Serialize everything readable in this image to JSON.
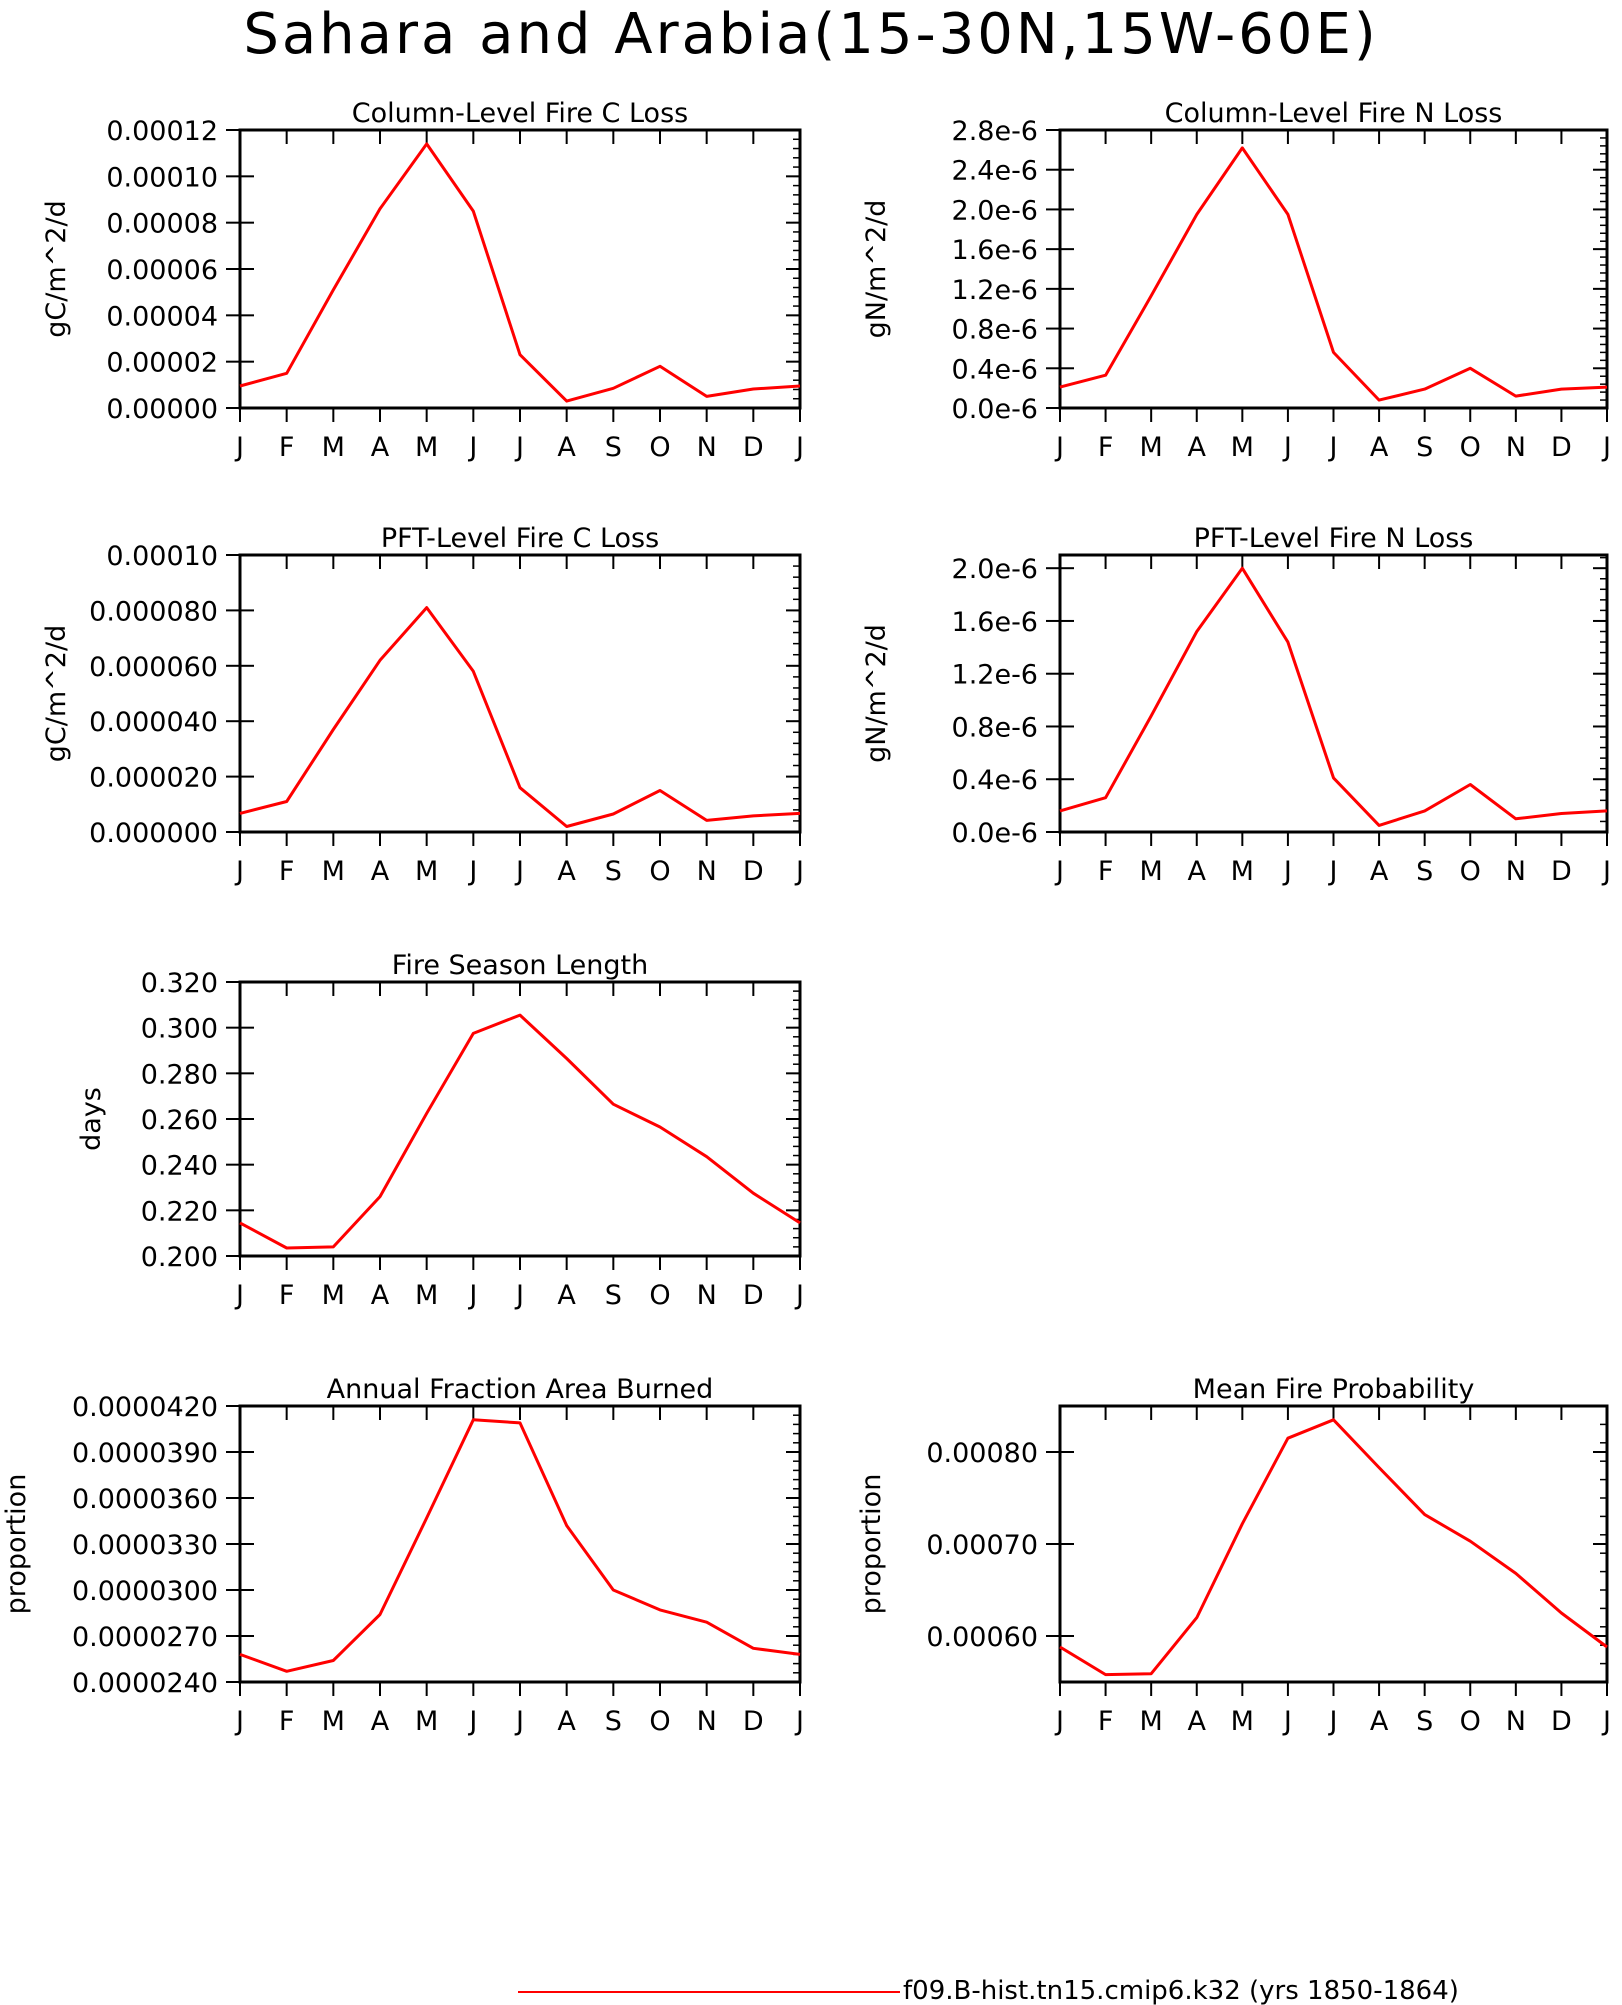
{
  "figure_title": "Sahara and Arabia(15-30N,15W-60E)",
  "legend": {
    "label": "f09.B-hist.tn15.cmip6.k32 (yrs 1850-1864)",
    "color": "#ff0000"
  },
  "colors": {
    "line": "#ff0000",
    "axis": "#000000",
    "background": "#ffffff"
  },
  "chart_data": [
    {
      "type": "line",
      "title": "Column-Level Fire C Loss",
      "ylabel": "gC/m^2/d",
      "xlabel": "",
      "categories": [
        "J",
        "F",
        "M",
        "A",
        "M",
        "J",
        "J",
        "A",
        "S",
        "O",
        "N",
        "D",
        "J"
      ],
      "ylim": [
        0,
        0.00012
      ],
      "yticks": [
        0,
        2e-05,
        4e-05,
        6e-05,
        8e-05,
        0.0001,
        0.00012
      ],
      "ytick_labels": [
        "0.00000",
        "0.00002",
        "0.00004",
        "0.00006",
        "0.00008",
        "0.00010",
        "0.00012"
      ],
      "series": [
        {
          "values": [
            9.5e-06,
            1.5e-05,
            5.1e-05,
            8.6e-05,
            0.000114,
            8.5e-05,
            2.3e-05,
            3e-06,
            8.5e-06,
            1.8e-05,
            5e-06,
            8.2e-06,
            9.5e-06
          ]
        }
      ],
      "grid": false
    },
    {
      "type": "line",
      "title": "Column-Level Fire N Loss",
      "ylabel": "gN/m^2/d",
      "xlabel": "",
      "categories": [
        "J",
        "F",
        "M",
        "A",
        "M",
        "J",
        "J",
        "A",
        "S",
        "O",
        "N",
        "D",
        "J"
      ],
      "ylim": [
        0,
        2.8e-06
      ],
      "yticks": [
        0,
        4e-07,
        8e-07,
        1.2e-06,
        1.6e-06,
        2e-06,
        2.4e-06,
        2.8e-06
      ],
      "ytick_labels": [
        "0.0e-6",
        "0.4e-6",
        "0.8e-6",
        "1.2e-6",
        "1.6e-6",
        "2.0e-6",
        "2.4e-6",
        "2.8e-6"
      ],
      "series": [
        {
          "values": [
            2.1e-07,
            3.3e-07,
            1.13e-06,
            1.95e-06,
            2.62e-06,
            1.95e-06,
            5.6e-07,
            8e-08,
            1.9e-07,
            4e-07,
            1.2e-07,
            1.9e-07,
            2.1e-07
          ]
        }
      ],
      "grid": false
    },
    {
      "type": "line",
      "title": "PFT-Level Fire C Loss",
      "ylabel": "gC/m^2/d",
      "xlabel": "",
      "categories": [
        "J",
        "F",
        "M",
        "A",
        "M",
        "J",
        "J",
        "A",
        "S",
        "O",
        "N",
        "D",
        "J"
      ],
      "ylim": [
        0,
        0.0001
      ],
      "yticks": [
        0,
        2e-05,
        4e-05,
        6e-05,
        8e-05,
        0.0001
      ],
      "ytick_labels": [
        "0.000000",
        "0.000020",
        "0.000040",
        "0.000060",
        "0.000080",
        "0.00010"
      ],
      "series": [
        {
          "values": [
            6.7e-06,
            1.1e-05,
            3.7e-05,
            6.2e-05,
            8.1e-05,
            5.8e-05,
            1.6e-05,
            2e-06,
            6.5e-06,
            1.5e-05,
            4.2e-06,
            5.8e-06,
            6.7e-06
          ]
        }
      ],
      "grid": false
    },
    {
      "type": "line",
      "title": "PFT-Level Fire N Loss",
      "ylabel": "gN/m^2/d",
      "xlabel": "",
      "categories": [
        "J",
        "F",
        "M",
        "A",
        "M",
        "J",
        "J",
        "A",
        "S",
        "O",
        "N",
        "D",
        "J"
      ],
      "ylim": [
        0,
        2.1e-06
      ],
      "yticks": [
        0,
        4e-07,
        8e-07,
        1.2e-06,
        1.6e-06,
        2e-06
      ],
      "ytick_labels": [
        "0.0e-6",
        "0.4e-6",
        "0.8e-6",
        "1.2e-6",
        "1.6e-6",
        "2.0e-6"
      ],
      "series": [
        {
          "values": [
            1.6e-07,
            2.6e-07,
            8.8e-07,
            1.52e-06,
            2e-06,
            1.44e-06,
            4.1e-07,
            5e-08,
            1.6e-07,
            3.6e-07,
            1e-07,
            1.4e-07,
            1.6e-07
          ]
        }
      ],
      "grid": false
    },
    {
      "type": "line",
      "title": "Fire Season Length",
      "ylabel": "days",
      "xlabel": "",
      "categories": [
        "J",
        "F",
        "M",
        "A",
        "M",
        "J",
        "J",
        "A",
        "S",
        "O",
        "N",
        "D",
        "J"
      ],
      "ylim": [
        0.2,
        0.32
      ],
      "yticks": [
        0.2,
        0.22,
        0.24,
        0.26,
        0.28,
        0.3,
        0.32
      ],
      "ytick_labels": [
        "0.200",
        "0.220",
        "0.240",
        "0.260",
        "0.280",
        "0.300",
        "0.320"
      ],
      "series": [
        {
          "values": [
            0.2145,
            0.2035,
            0.204,
            0.226,
            0.2625,
            0.2975,
            0.3055,
            0.2865,
            0.2665,
            0.2565,
            0.2435,
            0.2275,
            0.2145
          ]
        }
      ],
      "grid": false
    },
    {
      "type": "line",
      "title": "Annual Fraction Area Burned",
      "ylabel": "proportion",
      "xlabel": "",
      "categories": [
        "J",
        "F",
        "M",
        "A",
        "M",
        "J",
        "J",
        "A",
        "S",
        "O",
        "N",
        "D",
        "J"
      ],
      "ylim": [
        2.4e-05,
        4.2e-05
      ],
      "yticks": [
        2.4e-05,
        2.7e-05,
        3e-05,
        3.3e-05,
        3.6e-05,
        3.9e-05,
        4.2e-05
      ],
      "ytick_labels": [
        "0.0000240",
        "0.0000270",
        "0.0000300",
        "0.0000330",
        "0.0000360",
        "0.0000390",
        "0.0000420"
      ],
      "series": [
        {
          "values": [
            2.58e-05,
            2.47e-05,
            2.54e-05,
            2.84e-05,
            3.47e-05,
            4.11e-05,
            4.09e-05,
            3.42e-05,
            3e-05,
            2.87e-05,
            2.79e-05,
            2.62e-05,
            2.58e-05
          ]
        }
      ],
      "grid": false
    },
    {
      "type": "line",
      "title": "Mean Fire Probability",
      "ylabel": "proportion",
      "xlabel": "",
      "categories": [
        "J",
        "F",
        "M",
        "A",
        "M",
        "J",
        "J",
        "A",
        "S",
        "O",
        "N",
        "D",
        "J"
      ],
      "ylim": [
        0.00055,
        0.00085
      ],
      "yticks": [
        0.0006,
        0.0007,
        0.0008
      ],
      "ytick_labels": [
        "0.00060",
        "0.00070",
        "0.00080"
      ],
      "series": [
        {
          "values": [
            0.000588,
            0.000558,
            0.000559,
            0.00062,
            0.000722,
            0.000815,
            0.000835,
            0.000783,
            0.000732,
            0.000703,
            0.000668,
            0.000625,
            0.000588
          ]
        }
      ],
      "grid": false
    }
  ]
}
